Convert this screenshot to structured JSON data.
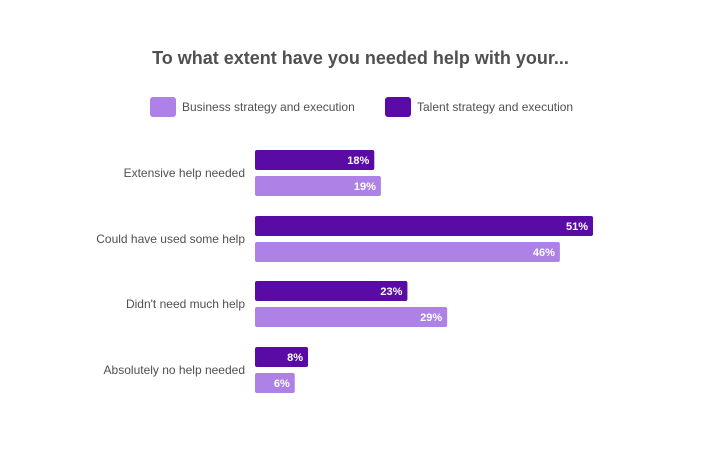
{
  "chart_data": {
    "type": "bar",
    "orientation": "horizontal",
    "title": "To what extent have you needed help with your...",
    "categories": [
      "Extensive help needed",
      "Could have used some help",
      "Didn't need much help",
      "Absolutely no help needed"
    ],
    "series": [
      {
        "name": "Talent strategy and execution",
        "color": "#5b0ba5",
        "values": [
          18,
          51,
          23,
          8
        ],
        "labels": [
          "18%",
          "51%",
          "23%",
          "8%"
        ]
      },
      {
        "name": "Business strategy and execution",
        "color": "#ad81e5",
        "values": [
          19,
          46,
          29,
          6
        ],
        "labels": [
          "19%",
          "46%",
          "29%",
          "6%"
        ]
      }
    ],
    "legend": {
      "placement": "top",
      "order": [
        "Business strategy and execution",
        "Talent strategy and execution"
      ]
    },
    "xlim": [
      0,
      60
    ],
    "grid": false,
    "unit": "%"
  }
}
